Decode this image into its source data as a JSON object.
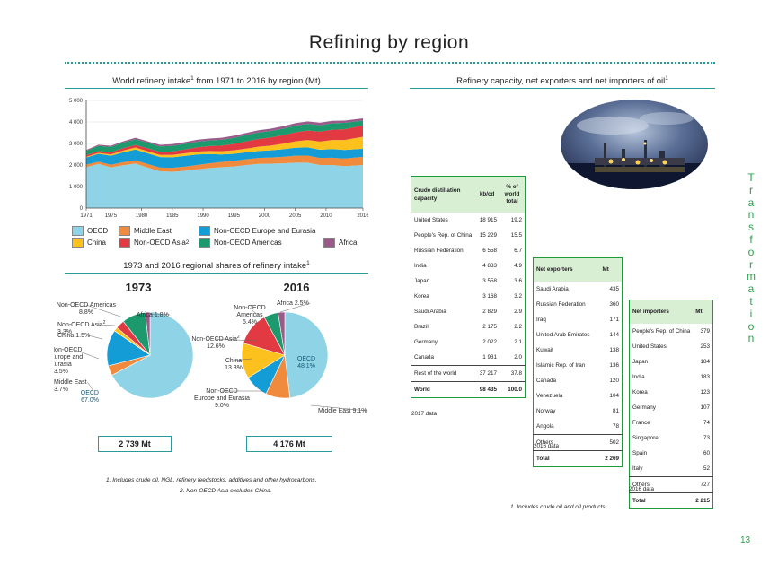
{
  "page": {
    "title": "Refining by region",
    "side_label": "Transformation",
    "page_number": "13"
  },
  "left": {
    "title_main": "World refinery intake",
    "title_sup": "1",
    "title_rest": " from 1971 to 2016 by region (Mt)",
    "pies_title": "1973 and 2016 regional shares of refinery intake",
    "pies_title_sup": "1",
    "total_1973": "2 739 Mt",
    "total_2016": "4 176 Mt",
    "footnote1": "1. Includes crude oil, NGL, refinery feedstocks, additives and other hydrocarbons.",
    "footnote2": "2. Non-OECD Asia excludes China."
  },
  "colors": {
    "OECD": "#8fd3e6",
    "Middle East": "#f08a3c",
    "Non-OECD Europe and Eurasia": "#149cd6",
    "China": "#fcc11c",
    "Non-OECD Asia": "#e23a42",
    "Non-OECD Americas": "#1c9a6e",
    "Africa": "#9a5a8a"
  },
  "chart_data": [
    {
      "type": "area",
      "title": "World refinery intake from 1971 to 2016 by region (Mt)",
      "x_ticks": [
        "1971",
        "1975",
        "1980",
        "1985",
        "1990",
        "1995",
        "2000",
        "2005",
        "2010",
        "2016"
      ],
      "y_ticks": [
        "0",
        "1 000",
        "2 000",
        "3 000",
        "4 000",
        "5 000"
      ],
      "ylim": [
        0,
        5000
      ],
      "legend": [
        {
          "name": "OECD"
        },
        {
          "name": "Middle East"
        },
        {
          "name": "Non-OECD Europe and Eurasia"
        },
        {
          "name": "China"
        },
        {
          "name": "Non-OECD Asia",
          "sup": "2"
        },
        {
          "name": "Non-OECD Americas"
        },
        {
          "name": "Africa"
        }
      ],
      "x": [
        1971,
        1973,
        1975,
        1977,
        1979,
        1981,
        1983,
        1985,
        1987,
        1989,
        1991,
        1993,
        1995,
        1997,
        1999,
        2001,
        2003,
        2005,
        2007,
        2009,
        2011,
        2013,
        2016
      ],
      "series": [
        {
          "name": "OECD",
          "values": [
            1900,
            2050,
            1890,
            1990,
            2070,
            1880,
            1710,
            1690,
            1730,
            1800,
            1860,
            1900,
            1930,
            2000,
            2050,
            2060,
            2080,
            2110,
            2110,
            2000,
            2000,
            1950,
            2000
          ]
        },
        {
          "name": "Middle East",
          "values": [
            120,
            101,
            120,
            140,
            150,
            160,
            170,
            180,
            190,
            200,
            220,
            240,
            260,
            270,
            280,
            290,
            300,
            320,
            330,
            330,
            340,
            350,
            380
          ]
        },
        {
          "name": "Non-OECD Europe and Eurasia",
          "values": [
            330,
            370,
            420,
            460,
            500,
            500,
            490,
            490,
            500,
            490,
            430,
            350,
            330,
            320,
            320,
            330,
            350,
            370,
            380,
            380,
            400,
            400,
            376
          ]
        },
        {
          "name": "China",
          "values": [
            30,
            41,
            60,
            80,
            90,
            100,
            100,
            110,
            120,
            130,
            140,
            150,
            160,
            170,
            200,
            220,
            260,
            300,
            340,
            380,
            420,
            460,
            555
          ]
        },
        {
          "name": "Non-OECD Asia",
          "values": [
            80,
            90,
            100,
            110,
            120,
            130,
            140,
            160,
            180,
            200,
            230,
            260,
            300,
            340,
            360,
            380,
            400,
            420,
            440,
            460,
            480,
            500,
            526
          ]
        },
        {
          "name": "Non-OECD Americas",
          "values": [
            200,
            241,
            250,
            260,
            270,
            260,
            250,
            260,
            260,
            260,
            260,
            270,
            280,
            290,
            300,
            300,
            300,
            310,
            310,
            300,
            300,
            300,
            225
          ]
        },
        {
          "name": "Africa",
          "values": [
            40,
            49,
            55,
            60,
            65,
            70,
            75,
            80,
            85,
            90,
            90,
            95,
            100,
            100,
            105,
            110,
            110,
            115,
            115,
            115,
            110,
            105,
            104
          ]
        }
      ]
    },
    {
      "type": "pie",
      "title": "1973",
      "total": "2 739 Mt",
      "slices": [
        {
          "name": "OECD",
          "value": 67.0,
          "label": [
            "OECD",
            "67.0%"
          ]
        },
        {
          "name": "Middle East",
          "value": 3.7,
          "label": [
            "Middle East",
            "3.7%"
          ]
        },
        {
          "name": "Non-OECD Europe and Eurasia",
          "value": 13.5,
          "label": [
            "Non-OECD",
            "Europe and",
            "Eurasia",
            "13.5%"
          ]
        },
        {
          "name": "China",
          "value": 1.5,
          "label": [
            "China 1.5%"
          ]
        },
        {
          "name": "Non-OECD Asia",
          "value": 3.3,
          "label": [
            "Non-OECD Asia",
            "2",
            "3.3%"
          ]
        },
        {
          "name": "Non-OECD Americas",
          "value": 8.8,
          "label": [
            "Non-OECD Americas",
            "8.8%"
          ]
        },
        {
          "name": "Africa",
          "value": 1.8,
          "label": [
            "Africa 1.8%"
          ]
        }
      ]
    },
    {
      "type": "pie",
      "title": "2016",
      "total": "4 176 Mt",
      "slices": [
        {
          "name": "OECD",
          "value": 48.1,
          "label": [
            "OECD",
            "48.1%"
          ]
        },
        {
          "name": "Middle East",
          "value": 9.1,
          "label": [
            "Middle East 9.1%"
          ]
        },
        {
          "name": "Non-OECD Europe and Eurasia",
          "value": 9.0,
          "label": [
            "Non-OECD",
            "Europe and Eurasia",
            "9.0%"
          ]
        },
        {
          "name": "China",
          "value": 13.3,
          "label": [
            "China",
            "13.3%"
          ]
        },
        {
          "name": "Non-OECD Asia",
          "value": 12.6,
          "label": [
            "Non-OECD Asia",
            "2",
            "12.6%"
          ]
        },
        {
          "name": "Non-OECD Americas",
          "value": 5.4,
          "label": [
            "Non-OECD",
            "Americas",
            "5.4%"
          ]
        },
        {
          "name": "Africa",
          "value": 2.5,
          "label": [
            "Africa 2.5%"
          ]
        }
      ]
    }
  ],
  "right": {
    "title_main": "Refinery capacity, net exporters and net importers of oil",
    "title_sup": "1",
    "footnote": "1. Includes crude oil and oil products.",
    "capacity": {
      "headers": [
        "Crude distillation capacity",
        "kb/cd",
        "% of world total"
      ],
      "rows": [
        [
          "United States",
          "18 915",
          "19.2"
        ],
        [
          "People's Rep. of China",
          "15 229",
          "15.5"
        ],
        [
          "Russian Federation",
          "6 558",
          "6.7"
        ],
        [
          "India",
          "4 833",
          "4.9"
        ],
        [
          "Japan",
          "3 558",
          "3.6"
        ],
        [
          "Korea",
          "3 168",
          "3.2"
        ],
        [
          "Saudi Arabia",
          "2 829",
          "2.9"
        ],
        [
          "Brazil",
          "2 175",
          "2.2"
        ],
        [
          "Germany",
          "2 022",
          "2.1"
        ],
        [
          "Canada",
          "1 931",
          "2.0"
        ]
      ],
      "rest": [
        "Rest of the world",
        "37 217",
        "37.8"
      ],
      "world": [
        "World",
        "98 435",
        "100.0"
      ],
      "note": "2017 data"
    },
    "exporters": {
      "headers": [
        "Net exporters",
        "Mt"
      ],
      "rows": [
        [
          "Saudi Arabia",
          "435"
        ],
        [
          "Russian Federation",
          "360"
        ],
        [
          "Iraq",
          "171"
        ],
        [
          "United Arab Emirates",
          "144"
        ],
        [
          "Kuwait",
          "138"
        ],
        [
          "Islamic Rep. of Iran",
          "136"
        ],
        [
          "Canada",
          "120"
        ],
        [
          "Venezuela",
          "104"
        ],
        [
          "Norway",
          "81"
        ],
        [
          "Angola",
          "78"
        ]
      ],
      "others": [
        "Others",
        "502"
      ],
      "total": [
        "Total",
        "2 269"
      ],
      "note": "2016 data"
    },
    "importers": {
      "headers": [
        "Net importers",
        "Mt"
      ],
      "rows": [
        [
          "People's Rep. of China",
          "379"
        ],
        [
          "United States",
          "253"
        ],
        [
          "Japan",
          "184"
        ],
        [
          "India",
          "183"
        ],
        [
          "Korea",
          "123"
        ],
        [
          "Germany",
          "107"
        ],
        [
          "France",
          "74"
        ],
        [
          "Singapore",
          "73"
        ],
        [
          "Spain",
          "60"
        ],
        [
          "Italy",
          "52"
        ]
      ],
      "others": [
        "Others",
        "727"
      ],
      "total": [
        "Total",
        "2 215"
      ],
      "note": "2016 data"
    }
  }
}
